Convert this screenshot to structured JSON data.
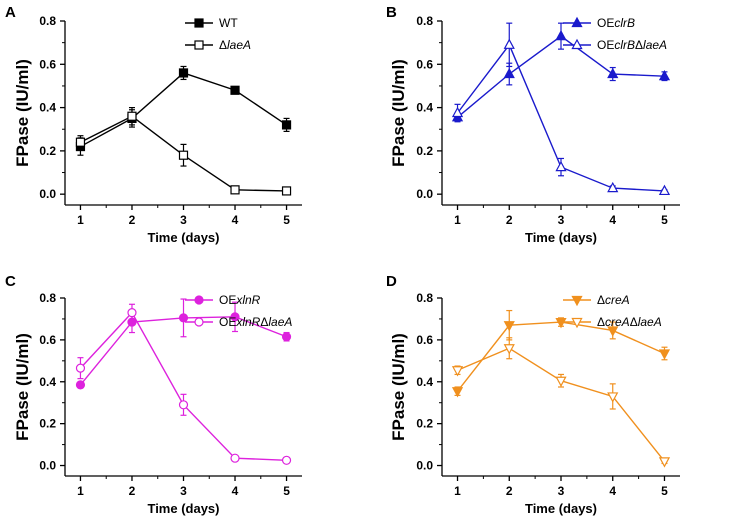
{
  "chart_data": [
    {
      "type": "line",
      "panel_label": "A",
      "xlabel": "Time (days)",
      "ylabel": "FPase (IU/ml)",
      "x": [
        1,
        2,
        3,
        4,
        5
      ],
      "xlim": [
        0.7,
        5.3
      ],
      "ylim": [
        -0.05,
        0.8
      ],
      "yticks": [
        0.0,
        0.2,
        0.4,
        0.6,
        0.8
      ],
      "legend_position": "top-right",
      "color": "#000000",
      "series": [
        {
          "name": "WT",
          "legend_prefix": "",
          "legend_italic": "",
          "legend_suffix": "",
          "legend_plain": "WT",
          "marker": "square",
          "filled": true,
          "values": [
            0.22,
            0.35,
            0.56,
            0.48,
            0.32
          ],
          "errors": [
            0.04,
            0.04,
            0.03,
            0.01,
            0.03
          ]
        },
        {
          "name": "ΔlaeA",
          "legend_prefix": "Δ",
          "legend_italic": "laeA",
          "legend_suffix": "",
          "legend_plain": "",
          "marker": "square",
          "filled": false,
          "values": [
            0.24,
            0.36,
            0.18,
            0.02,
            0.015
          ],
          "errors": [
            0.03,
            0.04,
            0.05,
            0.01,
            0.005
          ]
        }
      ]
    },
    {
      "type": "line",
      "panel_label": "B",
      "xlabel": "Time (days)",
      "ylabel": "FPase (IU/ml)",
      "x": [
        1,
        2,
        3,
        4,
        5
      ],
      "xlim": [
        0.7,
        5.3
      ],
      "ylim": [
        -0.05,
        0.8
      ],
      "yticks": [
        0.0,
        0.2,
        0.4,
        0.6,
        0.8
      ],
      "legend_position": "top-right",
      "color": "#1a1acc",
      "series": [
        {
          "name": "OEclrB",
          "legend_prefix": "OE",
          "legend_italic": "clrB",
          "legend_suffix": "",
          "legend_plain": "",
          "marker": "triangle-up",
          "filled": true,
          "values": [
            0.355,
            0.555,
            0.73,
            0.555,
            0.545
          ],
          "errors": [
            0.02,
            0.05,
            0.06,
            0.03,
            0.02
          ]
        },
        {
          "name": "OEclrBΔlaeA",
          "legend_prefix": "OE",
          "legend_italic": "clrB",
          "legend_suffix": "ΔlaeA",
          "legend_plain": "",
          "marker": "triangle-up",
          "filled": false,
          "values": [
            0.375,
            0.69,
            0.125,
            0.028,
            0.015
          ],
          "errors": [
            0.04,
            0.1,
            0.04,
            0.01,
            0.005
          ]
        }
      ]
    },
    {
      "type": "line",
      "panel_label": "C",
      "xlabel": "Time (days)",
      "ylabel": "FPase (IU/ml)",
      "x": [
        1,
        2,
        3,
        4,
        5
      ],
      "xlim": [
        0.7,
        5.3
      ],
      "ylim": [
        -0.05,
        0.8
      ],
      "yticks": [
        0.0,
        0.2,
        0.4,
        0.6,
        0.8
      ],
      "legend_position": "top-right",
      "color": "#dd22dd",
      "series": [
        {
          "name": "OExlnR",
          "legend_prefix": "OE",
          "legend_italic": "xlnR",
          "legend_suffix": "",
          "legend_plain": "",
          "marker": "circle",
          "filled": true,
          "values": [
            0.385,
            0.685,
            0.705,
            0.71,
            0.615
          ],
          "errors": [
            0.01,
            0.05,
            0.09,
            0.07,
            0.02
          ]
        },
        {
          "name": "OExlnRΔlaeA",
          "legend_prefix": "OE",
          "legend_italic": "xlnR",
          "legend_suffix": "ΔlaeA",
          "legend_plain": "",
          "marker": "circle",
          "filled": false,
          "values": [
            0.465,
            0.73,
            0.29,
            0.035,
            0.025
          ],
          "errors": [
            0.05,
            0.04,
            0.05,
            0.01,
            0.01
          ]
        }
      ]
    },
    {
      "type": "line",
      "panel_label": "D",
      "xlabel": "Time (days)",
      "ylabel": "FPase (IU/ml)",
      "x": [
        1,
        2,
        3,
        4,
        5
      ],
      "xlim": [
        0.7,
        5.3
      ],
      "ylim": [
        -0.05,
        0.8
      ],
      "yticks": [
        0.0,
        0.2,
        0.4,
        0.6,
        0.8
      ],
      "legend_position": "top-right",
      "color": "#f0901e",
      "series": [
        {
          "name": "ΔcreA",
          "legend_prefix": "Δ",
          "legend_italic": "creA",
          "legend_suffix": "",
          "legend_plain": "",
          "marker": "triangle-down",
          "filled": true,
          "values": [
            0.355,
            0.67,
            0.685,
            0.645,
            0.535
          ],
          "errors": [
            0.02,
            0.07,
            0.02,
            0.04,
            0.03
          ]
        },
        {
          "name": "ΔcreAΔlaeA",
          "legend_prefix": "Δ",
          "legend_italic": "creA",
          "legend_suffix": "ΔlaeA",
          "legend_plain": "",
          "marker": "triangle-down",
          "filled": false,
          "values": [
            0.455,
            0.56,
            0.405,
            0.33,
            0.02
          ],
          "errors": [
            0.02,
            0.05,
            0.03,
            0.06,
            0.01
          ]
        }
      ]
    }
  ]
}
